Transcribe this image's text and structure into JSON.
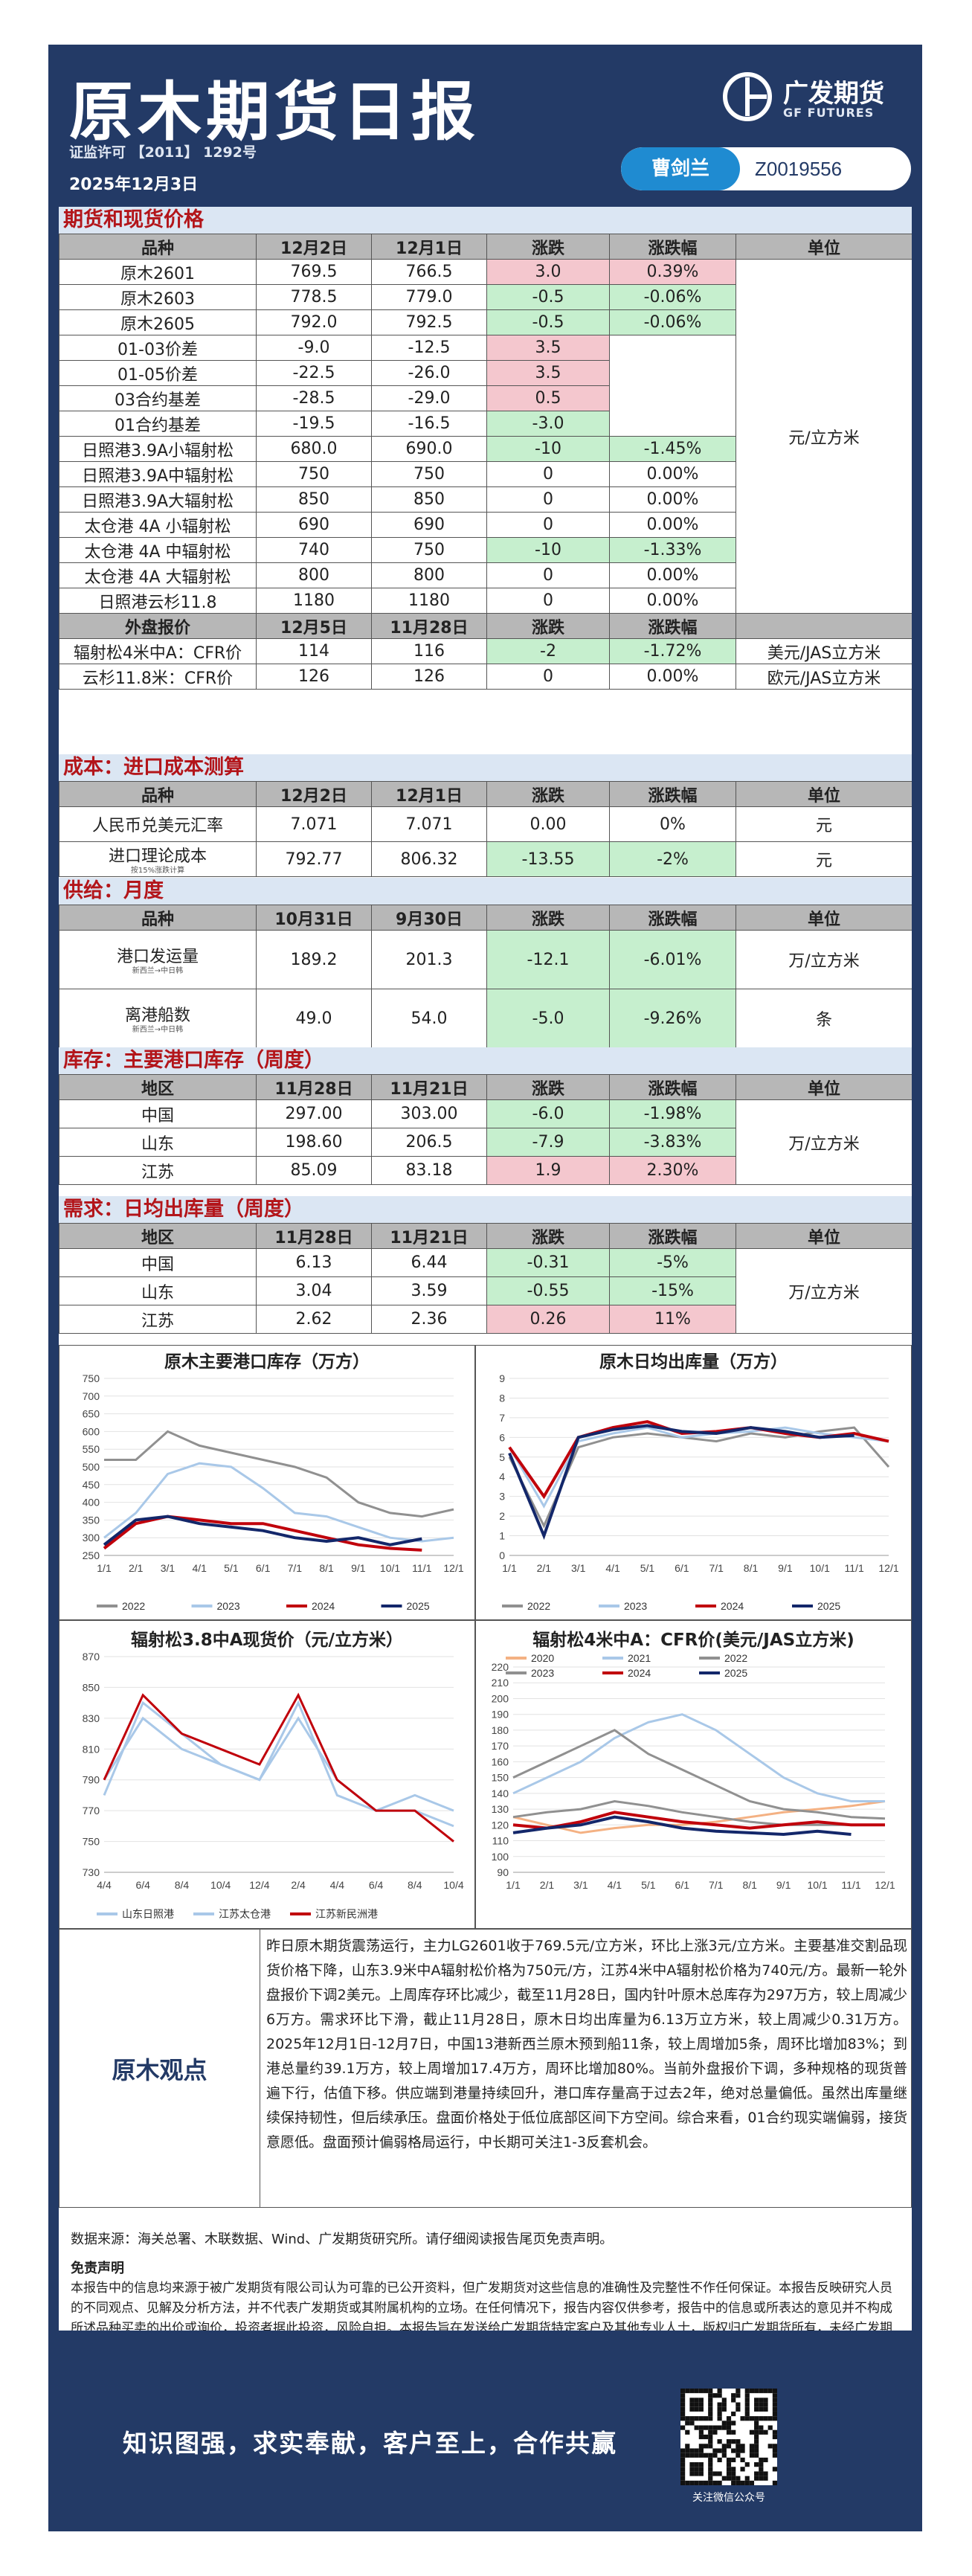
{
  "header": {
    "title": "原木期货日报",
    "permit": "证监许可 【2011】 1292号",
    "date": "2025年12月3日",
    "logo_name": "广发期货",
    "logo_en": "GF FUTURES",
    "analyst_name": "曹剑兰",
    "analyst_id": "Z0019556"
  },
  "sections": {
    "futures": "期货和现货价格",
    "cost": "成本：进口成本测算",
    "supply": "供给：月度",
    "inventory": "库存：主要港口库存（周度）",
    "demand": "需求：日均出库量（周度）"
  },
  "futures_table": {
    "headers": [
      "品种",
      "12月2日",
      "12月1日",
      "涨跌",
      "涨跌幅",
      "单位"
    ],
    "rows": [
      [
        "原木2601",
        "769.5",
        "766.5",
        "3.0",
        "0.39%"
      ],
      [
        "原木2603",
        "778.5",
        "779.0",
        "-0.5",
        "-0.06%"
      ],
      [
        "原木2605",
        "792.0",
        "792.5",
        "-0.5",
        "-0.06%"
      ],
      [
        "01-03价差",
        "-9.0",
        "-12.5",
        "3.5",
        ""
      ],
      [
        "01-05价差",
        "-22.5",
        "-26.0",
        "3.5",
        ""
      ],
      [
        "03合约基差",
        "-28.5",
        "-29.0",
        "0.5",
        ""
      ],
      [
        "01合约基差",
        "-19.5",
        "-16.5",
        "-3.0",
        ""
      ],
      [
        "日照港3.9A小辐射松",
        "680.0",
        "690.0",
        "-10",
        "-1.45%"
      ],
      [
        "日照港3.9A中辐射松",
        "750",
        "750",
        "0",
        "0.00%"
      ],
      [
        "日照港3.9A大辐射松",
        "850",
        "850",
        "0",
        "0.00%"
      ],
      [
        "太仓港 4A 小辐射松",
        "690",
        "690",
        "0",
        "0.00%"
      ],
      [
        "太仓港 4A 中辐射松",
        "740",
        "750",
        "-10",
        "-1.33%"
      ],
      [
        "太仓港 4A 大辐射松",
        "800",
        "800",
        "0",
        "0.00%"
      ],
      [
        "日照港云杉11.8",
        "1180",
        "1180",
        "0",
        "0.00%"
      ]
    ],
    "unit": "元/立方米",
    "ext_headers": [
      "外盘报价",
      "12月5日",
      "11月28日",
      "涨跌",
      "涨跌幅"
    ],
    "ext_rows": [
      [
        "辐射松4米中A：CFR价",
        "114",
        "116",
        "-2",
        "-1.72%",
        "美元/JAS立方米"
      ],
      [
        "云杉11.8米：CFR价",
        "126",
        "126",
        "0",
        "0.00%",
        "欧元/JAS立方米"
      ]
    ]
  },
  "cost_table": {
    "headers": [
      "品种",
      "12月2日",
      "12月1日",
      "涨跌",
      "涨跌幅",
      "单位"
    ],
    "rows": [
      [
        "人民币兑美元汇率",
        "",
        "7.071",
        "7.071",
        "0.00",
        "0%",
        "元"
      ],
      [
        "进口理论成本",
        "按15%涨跌计算",
        "792.77",
        "806.32",
        "-13.55",
        "-2%",
        "元"
      ]
    ]
  },
  "supply_table": {
    "headers": [
      "品种",
      "10月31日",
      "9月30日",
      "涨跌",
      "涨跌幅",
      "单位"
    ],
    "rows": [
      [
        "港口发运量",
        "新西兰→中日韩",
        "189.2",
        "201.3",
        "-12.1",
        "-6.01%",
        "万/立方米"
      ],
      [
        "离港船数",
        "新西兰→中日韩",
        "49.0",
        "54.0",
        "-5.0",
        "-9.26%",
        "条"
      ]
    ]
  },
  "inventory_table": {
    "headers": [
      "地区",
      "11月28日",
      "11月21日",
      "涨跌",
      "涨跌幅",
      "单位"
    ],
    "rows": [
      [
        "中国",
        "297.00",
        "303.00",
        "-6.0",
        "-1.98%"
      ],
      [
        "山东",
        "198.60",
        "206.5",
        "-7.9",
        "-3.83%"
      ],
      [
        "江苏",
        "85.09",
        "83.18",
        "1.9",
        "2.30%"
      ]
    ],
    "unit": "万/立方米"
  },
  "demand_table": {
    "headers": [
      "地区",
      "11月28日",
      "11月21日",
      "涨跌",
      "涨跌幅",
      "单位"
    ],
    "rows": [
      [
        "中国",
        "6.13",
        "6.44",
        "-0.31",
        "-5%"
      ],
      [
        "山东",
        "3.04",
        "3.59",
        "-0.55",
        "-15%"
      ],
      [
        "江苏",
        "2.62",
        "2.36",
        "0.26",
        "11%"
      ]
    ],
    "unit": "万/立方米"
  },
  "chart_data": [
    {
      "type": "line",
      "title": "原木主要港口库存（万方）",
      "ylim": [
        250,
        750
      ],
      "yticks": [
        "250",
        "300",
        "350",
        "400",
        "450",
        "500",
        "550",
        "600",
        "650",
        "700",
        "750"
      ],
      "categories": [
        "1/1",
        "2/1",
        "3/1",
        "4/1",
        "5/1",
        "6/1",
        "7/1",
        "8/1",
        "9/1",
        "10/1",
        "11/1",
        "12/1"
      ],
      "series": [
        {
          "name": "2022",
          "color": "#909090",
          "values": [
            520,
            520,
            600,
            560,
            540,
            520,
            500,
            470,
            400,
            370,
            360,
            380
          ]
        },
        {
          "name": "2023",
          "color": "#a9c8e8",
          "values": [
            300,
            370,
            480,
            510,
            500,
            440,
            370,
            360,
            330,
            300,
            290,
            300
          ]
        },
        {
          "name": "2024",
          "color": "#c0000b",
          "values": [
            270,
            340,
            360,
            350,
            340,
            340,
            320,
            300,
            280,
            270,
            265,
            null
          ]
        },
        {
          "name": "2025",
          "color": "#13276a",
          "values": [
            280,
            350,
            360,
            340,
            330,
            320,
            300,
            290,
            300,
            280,
            297,
            null
          ]
        }
      ],
      "legend": "bottom"
    },
    {
      "type": "line",
      "title": "原木日均出库量（万方）",
      "ylim": [
        0,
        9
      ],
      "yticks": [
        "0",
        "1",
        "2",
        "3",
        "4",
        "5",
        "6",
        "7",
        "8",
        "9"
      ],
      "categories": [
        "1/1",
        "2/1",
        "3/1",
        "4/1",
        "5/1",
        "6/1",
        "7/1",
        "8/1",
        "9/1",
        "10/1",
        "11/1",
        "12/1"
      ],
      "series": [
        {
          "name": "2022",
          "color": "#909090",
          "values": [
            5.0,
            1.5,
            5.5,
            6.0,
            6.2,
            6.0,
            5.8,
            6.2,
            6.0,
            6.3,
            6.5,
            4.5
          ]
        },
        {
          "name": "2023",
          "color": "#a9c8e8",
          "values": [
            5.5,
            2.5,
            5.8,
            6.2,
            6.5,
            6.0,
            6.2,
            6.3,
            6.5,
            6.2,
            6.0,
            5.8
          ]
        },
        {
          "name": "2024",
          "color": "#c0000b",
          "values": [
            5.5,
            3.0,
            6.0,
            6.5,
            6.8,
            6.2,
            6.3,
            6.5,
            6.2,
            6.0,
            6.2,
            5.8
          ]
        },
        {
          "name": "2025",
          "color": "#13276a",
          "values": [
            5.2,
            1.0,
            6.0,
            6.4,
            6.6,
            6.3,
            6.2,
            6.5,
            6.3,
            6.0,
            6.1,
            null
          ]
        }
      ],
      "legend": "bottom"
    },
    {
      "type": "line",
      "title": "辐射松3.8中A现货价（元/立方米）",
      "ylim": [
        730,
        870
      ],
      "yticks": [
        "730",
        "750",
        "770",
        "790",
        "810",
        "830",
        "850",
        "870"
      ],
      "categories": [
        "4/4",
        "6/4",
        "8/4",
        "10/4",
        "12/4",
        "2/4",
        "4/4",
        "6/4",
        "8/4",
        "10/4"
      ],
      "series": [
        {
          "name": "山东日照港",
          "color": "#a9c8e8",
          "values": [
            780,
            840,
            820,
            800,
            790,
            840,
            780,
            770,
            780,
            770
          ]
        },
        {
          "name": "江苏太仓港",
          "color": "#a9c8e8",
          "values": [
            790,
            830,
            810,
            800,
            790,
            830,
            790,
            770,
            770,
            760
          ]
        },
        {
          "name": "江苏新民洲港",
          "color": "#c0000b",
          "values": [
            790,
            845,
            820,
            810,
            800,
            845,
            790,
            770,
            770,
            750
          ]
        }
      ],
      "legend": "bottom"
    },
    {
      "type": "line",
      "title": "辐射松4米中A：CFR价(美元/JAS立方米)",
      "ylim": [
        90,
        220
      ],
      "yticks": [
        "90",
        "100",
        "110",
        "120",
        "130",
        "140",
        "150",
        "160",
        "170",
        "180",
        "190",
        "200",
        "210",
        "220"
      ],
      "categories": [
        "1/1",
        "2/1",
        "3/1",
        "4/1",
        "5/1",
        "6/1",
        "7/1",
        "8/1",
        "9/1",
        "10/1",
        "11/1",
        "12/1"
      ],
      "series": [
        {
          "name": "2020",
          "color": "#f4b183",
          "values": [
            125,
            120,
            115,
            118,
            120,
            120,
            122,
            125,
            128,
            130,
            132,
            135
          ]
        },
        {
          "name": "2021",
          "color": "#a9c8e8",
          "values": [
            140,
            150,
            160,
            175,
            185,
            190,
            180,
            165,
            150,
            140,
            135,
            135
          ]
        },
        {
          "name": "2022",
          "color": "#909090",
          "values": [
            150,
            160,
            170,
            180,
            165,
            155,
            145,
            135,
            130,
            128,
            125,
            124
          ]
        },
        {
          "name": "2023",
          "color": "#909090",
          "values": [
            125,
            128,
            130,
            135,
            132,
            128,
            125,
            122,
            120,
            120,
            120,
            120
          ]
        },
        {
          "name": "2024",
          "color": "#c0000b",
          "values": [
            120,
            118,
            122,
            128,
            125,
            122,
            120,
            118,
            120,
            122,
            120,
            120
          ]
        },
        {
          "name": "2025",
          "color": "#13276a",
          "values": [
            115,
            118,
            120,
            125,
            122,
            118,
            116,
            115,
            114,
            116,
            114,
            null
          ]
        }
      ],
      "legend": "top"
    }
  ],
  "view": {
    "label": "原木观点",
    "text": "昨日原木期货震荡运行，主力LG2601收于769.5元/立方米，环比上涨3元/立方米。主要基准交割品现货价格下降，山东3.9米中A辐射松价格为750元/方，江苏4米中A辐射松价格为740元/方。最新一轮外盘报价下调2美元。上周库存环比减少，截至11月28日，国内针叶原木总库存为297万方，较上周减少6万方。需求环比下滑，截止11月28日，原木日均出库量为6.13万立方米，较上周减少0.31万方。2025年12月1日-12月7日，中国13港新西兰原木预到船11条，较上周增加5条，周环比增加83%；到港总量约39.1万方，较上周增加17.4万方，周环比增加80%。当前外盘报价下调，多种规格的现货普遍下行，估值下移。供应端到港量持续回升，港口库存量高于过去2年，绝对总量偏低。虽然出库量继续保持韧性，但后续承压。盘面价格处于低位底部区间下方空间。综合来看，01合约现实端偏弱，接货意愿低。盘面预计偏弱格局运行，中长期可关注1-3反套机会。"
  },
  "source": "数据来源：海关总署、木联数据、Wind、广发期货研究所。请仔细阅读报告尾页免责声明。",
  "disclaimer": {
    "title": "免责声明",
    "text": "本报告中的信息均来源于被广发期货有限公司认为可靠的已公开资料，但广发期货对这些信息的准确性及完整性不作任何保证。本报告反映研究人员的不同观点、见解及分析方法，并不代表广发期货或其附属机构的立场。在任何情况下，报告内容仅供参考，报告中的信息或所表达的意见并不构成所述品种买卖的出价或询价，投资者据此投资，风险自担。本报告旨在发送给广发期货特定客户及其他专业人士，版权归广发期货所有，未经广发期货书面授权，任何人不得对本报告进行任何形式的发布、复制。如引用、刊发，需注明出处为“广发期货”。"
  },
  "footer": {
    "slogan": "知识图强，求实奉献，客户至上，合作共赢",
    "qr_caption": "关注微信公众号"
  }
}
